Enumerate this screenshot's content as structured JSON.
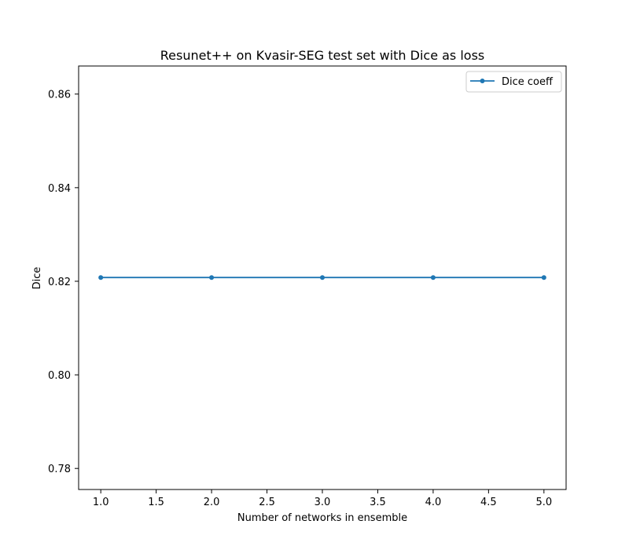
{
  "chart_data": {
    "type": "line",
    "title": "Resunet++ on Kvasir-SEG test set with Dice as loss",
    "xlabel": "Number of networks in ensemble",
    "ylabel": "Dice",
    "xlim": [
      0.8,
      5.2
    ],
    "ylim": [
      0.7755,
      0.866
    ],
    "x_ticks": [
      1.0,
      1.5,
      2.0,
      2.5,
      3.0,
      3.5,
      4.0,
      4.5,
      5.0
    ],
    "x_tick_labels": [
      "1.0",
      "1.5",
      "2.0",
      "2.5",
      "3.0",
      "3.5",
      "4.0",
      "4.5",
      "5.0"
    ],
    "y_ticks": [
      0.78,
      0.8,
      0.82,
      0.84,
      0.86
    ],
    "y_tick_labels": [
      "0.78",
      "0.80",
      "0.82",
      "0.84",
      "0.86"
    ],
    "grid": false,
    "legend_position": "top-right",
    "x": [
      1,
      2,
      3,
      4,
      5
    ],
    "series": [
      {
        "name": "Dice coeff",
        "values": [
          0.8208,
          0.8208,
          0.8208,
          0.8208,
          0.8208
        ],
        "color": "#1f77b4",
        "marker": "circle"
      }
    ]
  }
}
